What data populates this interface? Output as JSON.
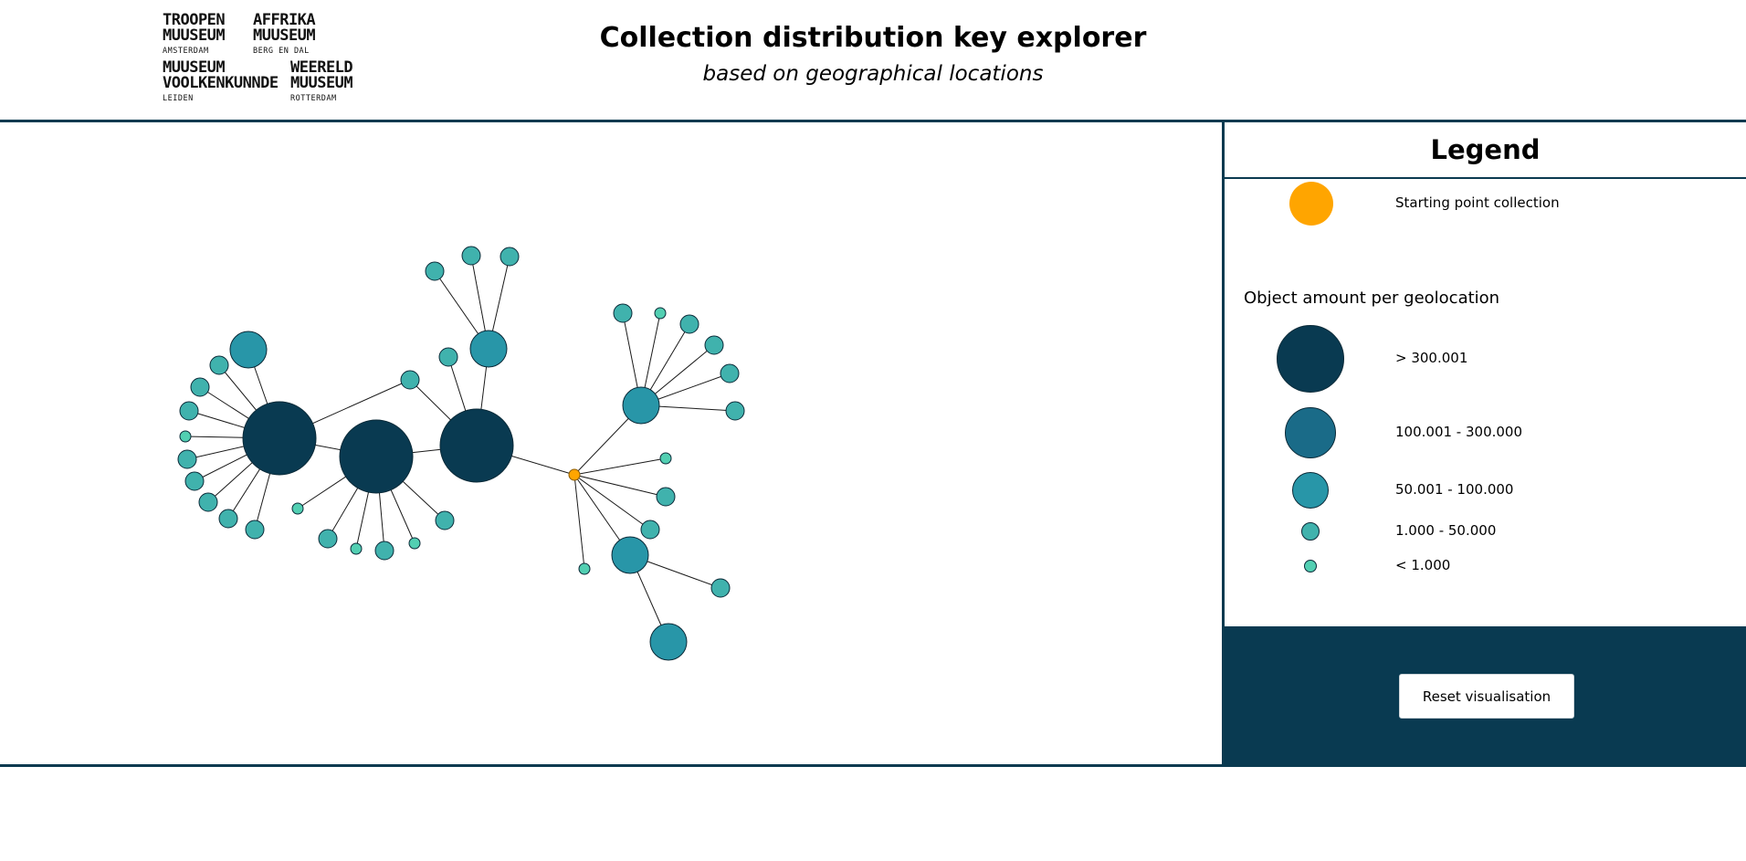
{
  "header": {
    "title": "Collection distribution key explorer",
    "subtitle": "based on geographical locations"
  },
  "logos": [
    {
      "line1": "TROOPEN",
      "line2": "MUUSEUM",
      "city": "AMSTERDAM"
    },
    {
      "line1": "AFFRIKA",
      "line2": "MUUSEUM",
      "city": "BERG EN DAL"
    },
    {
      "line1": "MUUSEUM",
      "line2": "VOOLKENKUNNDE",
      "city": "LEIDEN"
    },
    {
      "line1": "WEERELD",
      "line2": "MUUSEUM",
      "city": "ROTTERDAM"
    }
  ],
  "legend": {
    "title": "Legend",
    "start_label": "Starting point collection",
    "heading": "Object amount per geolocation",
    "classes": [
      {
        "label": "> 300.001",
        "color": "#093a51"
      },
      {
        "label": "100.001 - 300.000",
        "color": "#1a6b88"
      },
      {
        "label": "50.001 - 100.000",
        "color": "#2896a8"
      },
      {
        "label": "1.000 - 50.000",
        "color": "#40b2ad"
      },
      {
        "label": "< 1.000",
        "color": "#52cfb2"
      }
    ],
    "start_color": "#ffa500"
  },
  "controls": {
    "reset_label": "Reset visualisation"
  },
  "network": {
    "root": "origin",
    "size_classes": [
      "> 300.001",
      "100.001 - 300.000",
      "50.001 - 100.000",
      "1.000 - 50.000",
      "< 1.000"
    ],
    "edges": [
      [
        "origin",
        "H3"
      ],
      [
        "origin",
        "M2"
      ],
      [
        "origin",
        "M3"
      ],
      [
        "origin",
        "s31"
      ],
      [
        "origin",
        "s32"
      ],
      [
        "origin",
        "s33"
      ],
      [
        "origin",
        "t31"
      ],
      [
        "H3",
        "H2"
      ],
      [
        "H2",
        "H1"
      ],
      [
        "H3",
        "M1"
      ],
      [
        "H3",
        "s21"
      ],
      [
        "H3",
        "s22"
      ],
      [
        "M1",
        "s11"
      ],
      [
        "M1",
        "s12"
      ],
      [
        "M1",
        "s13"
      ],
      [
        "H1",
        "M0"
      ],
      [
        "H1",
        "s01"
      ],
      [
        "H1",
        "s02"
      ],
      [
        "H1",
        "s03"
      ],
      [
        "H1",
        "t01"
      ],
      [
        "H1",
        "s04"
      ],
      [
        "H1",
        "s05"
      ],
      [
        "H1",
        "s06"
      ],
      [
        "H1",
        "s07"
      ],
      [
        "H1",
        "s08"
      ],
      [
        "H1",
        "s09"
      ],
      [
        "H2",
        "t11"
      ],
      [
        "H2",
        "s41"
      ],
      [
        "H2",
        "t12"
      ],
      [
        "H2",
        "s42"
      ],
      [
        "H2",
        "t13"
      ],
      [
        "H2",
        "s43"
      ],
      [
        "M2",
        "s51"
      ],
      [
        "M2",
        "t21"
      ],
      [
        "M2",
        "s52"
      ],
      [
        "M2",
        "s53"
      ],
      [
        "M2",
        "s54"
      ],
      [
        "M2",
        "s55"
      ],
      [
        "M3",
        "s61"
      ],
      [
        "M3",
        "M4"
      ]
    ]
  }
}
